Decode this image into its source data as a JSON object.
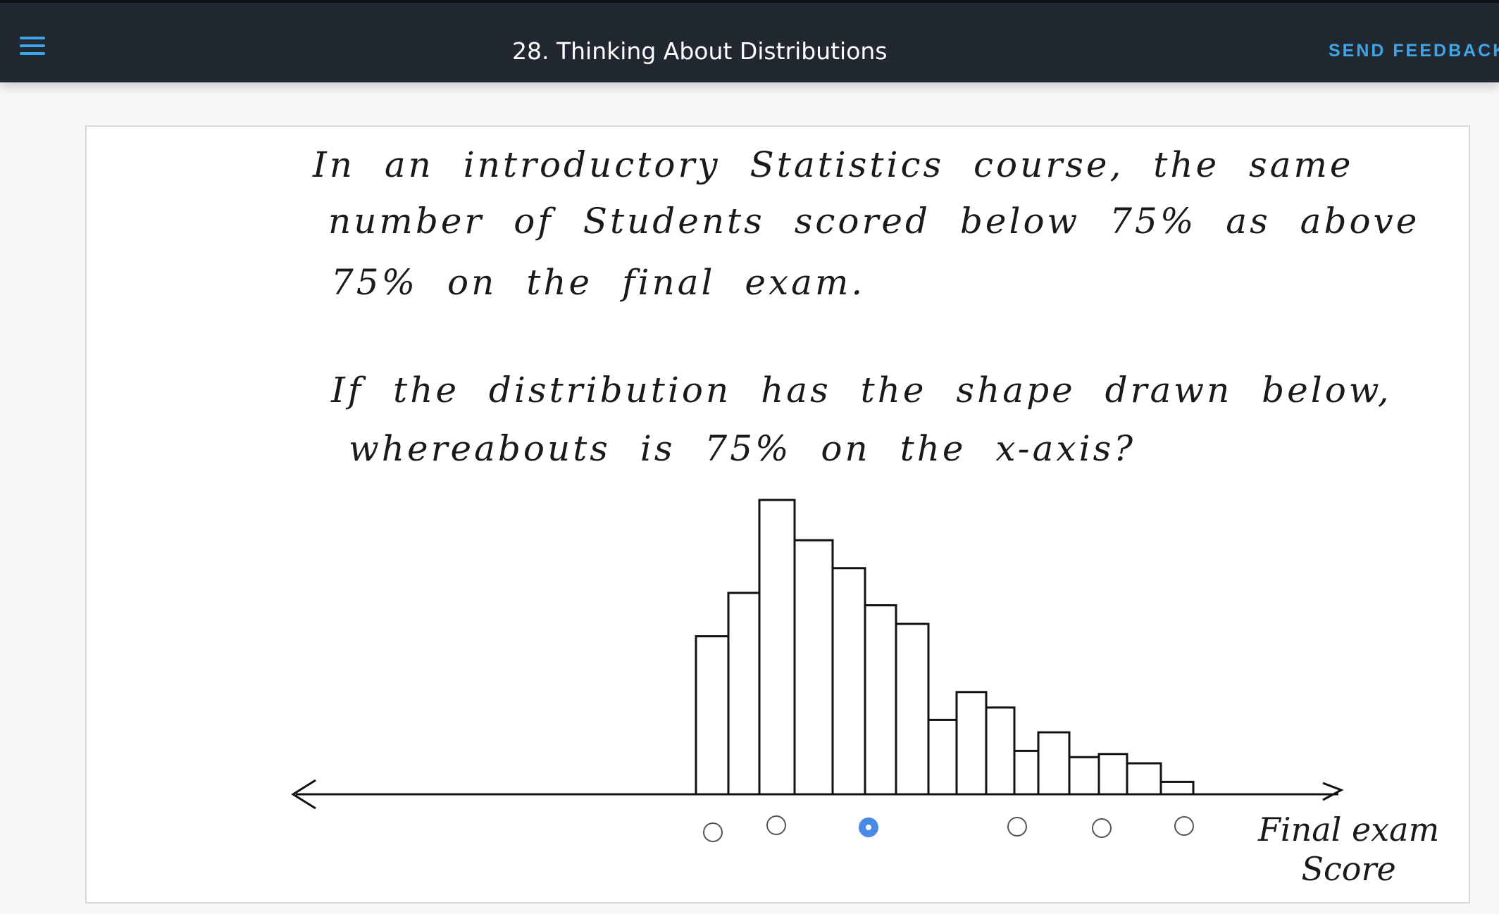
{
  "header": {
    "menu_icon": "hamburger-menu-icon",
    "title": "28. Thinking About Distributions",
    "feedback_label": "SEND FEEDBACK",
    "accent_color": "#3ea6e6",
    "background_color": "#222831"
  },
  "question": {
    "lines": [
      "In an introductory Statistics course, the same",
      "number of Students scored below 75% as above",
      "75% on the final exam.",
      "If the distribution has the shape drawn below,",
      "whereabouts is 75% on the x-axis?"
    ]
  },
  "axis": {
    "label_line1": "Final exam",
    "label_line2": "Score"
  },
  "answer_options": {
    "count": 6,
    "selected_index": 2,
    "selected_color": "#4a88e8"
  },
  "chart_data": {
    "type": "bar",
    "values": [
      5.1,
      6.5,
      9.5,
      8.2,
      7.3,
      6.1,
      5.5,
      2.4,
      3.3,
      2.8,
      1.4,
      2.0,
      1.2,
      1.3,
      1.0,
      0.4
    ]
  }
}
